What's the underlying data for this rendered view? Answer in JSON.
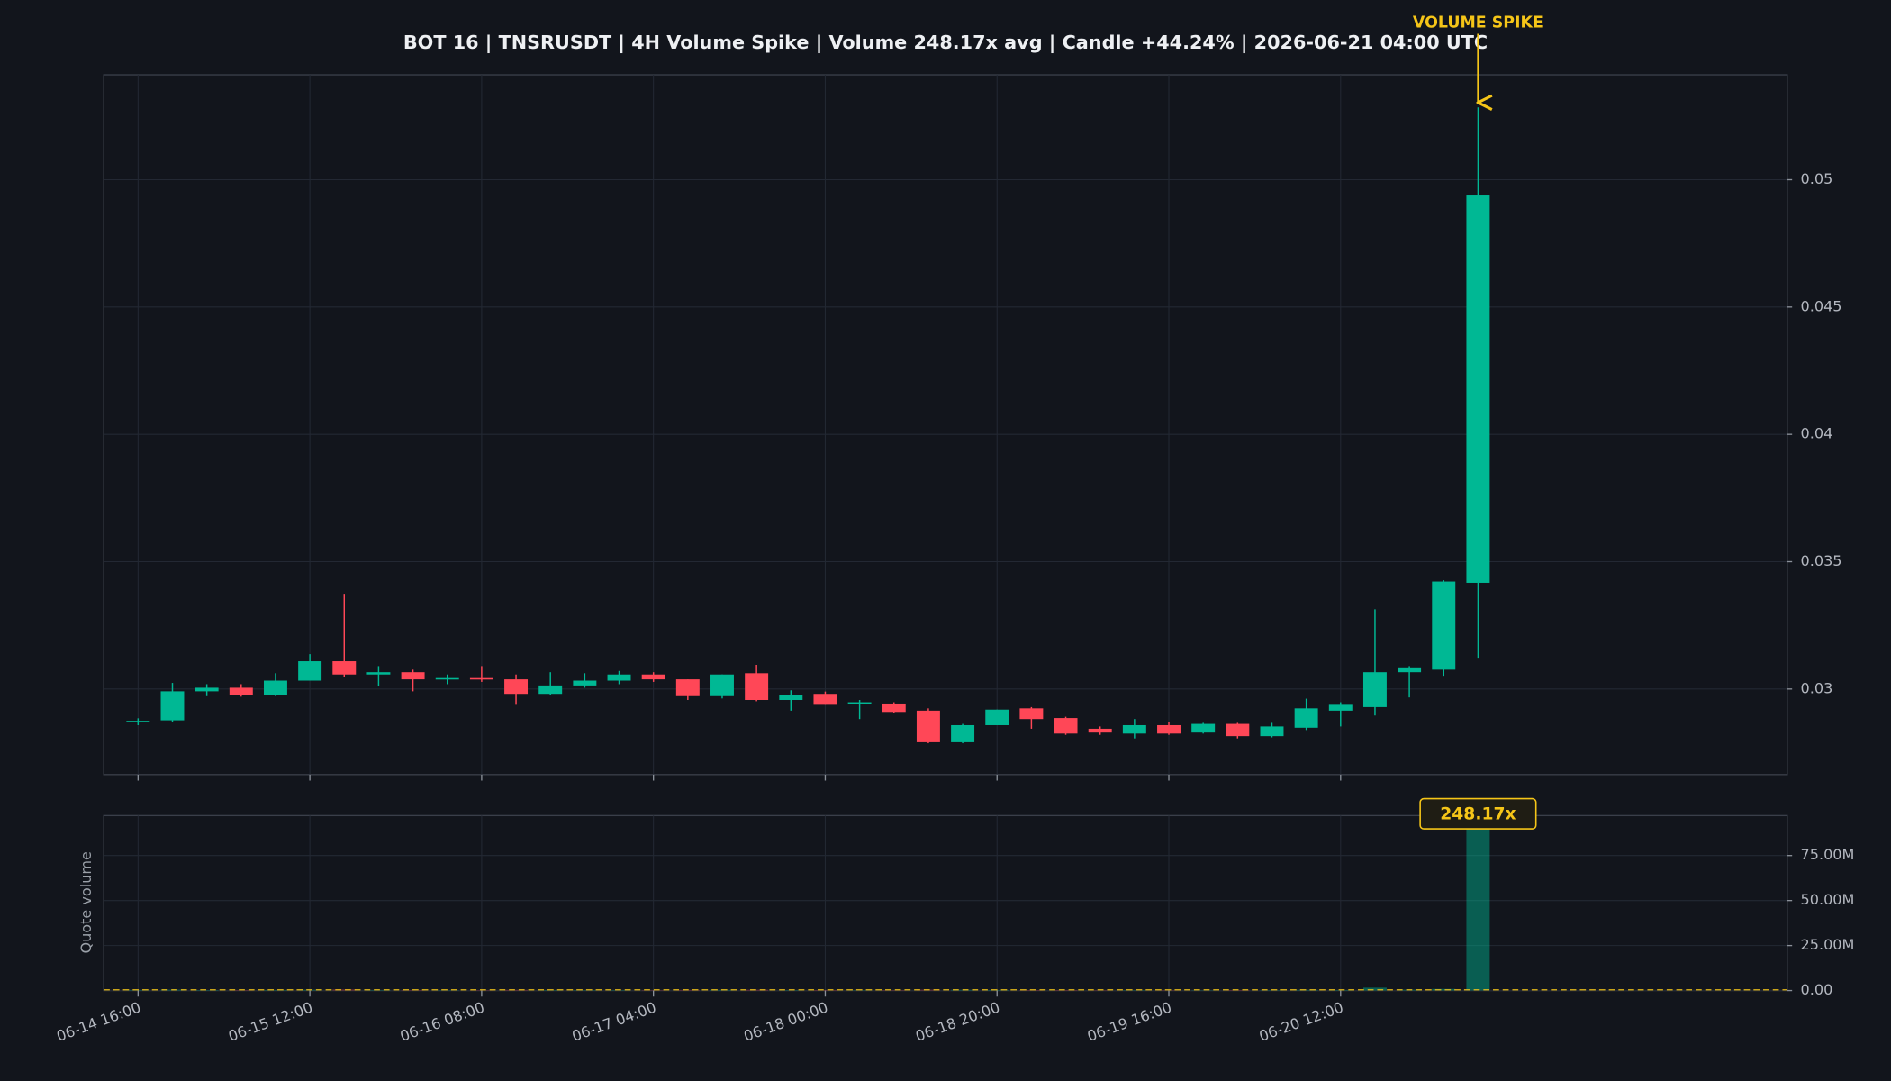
{
  "chart_data": [
    {
      "type": "candlestick",
      "title": "BOT 16 | TNSRUSDT | 4H Volume Spike | Volume 248.17x avg | Candle +44.24% | 2026-06-21 04:00 UTC",
      "open": [
        0.0287,
        0.02877,
        0.02991,
        0.03005,
        0.02977,
        0.03033,
        0.03109,
        0.03057,
        0.03066,
        0.03038,
        0.03043,
        0.03038,
        0.02981,
        0.03014,
        0.03033,
        0.03057,
        0.03038,
        0.02972,
        0.03062,
        0.02957,
        0.02981,
        0.02943,
        0.02943,
        0.02915,
        0.02791,
        0.02858,
        0.02924,
        0.02886,
        0.02844,
        0.02825,
        0.02858,
        0.02829,
        0.02863,
        0.02815,
        0.02848,
        0.02915,
        0.02929,
        0.03066,
        0.03076,
        0.03417
      ],
      "high": [
        0.02885,
        0.03024,
        0.03019,
        0.03019,
        0.03062,
        0.03137,
        0.03374,
        0.0309,
        0.03076,
        0.03057,
        0.0309,
        0.03057,
        0.03066,
        0.03062,
        0.03071,
        0.03066,
        0.03038,
        0.03057,
        0.03095,
        0.02995,
        0.0299,
        0.02957,
        0.02948,
        0.02924,
        0.02863,
        0.02919,
        0.02929,
        0.02891,
        0.02853,
        0.02882,
        0.02872,
        0.02867,
        0.02867,
        0.02867,
        0.02962,
        0.02948,
        0.03313,
        0.0309,
        0.03427,
        0.05284
      ],
      "low": [
        0.02858,
        0.02872,
        0.02972,
        0.0297,
        0.02972,
        0.03033,
        0.03047,
        0.0301,
        0.02991,
        0.03019,
        0.03028,
        0.02938,
        0.02977,
        0.03005,
        0.03019,
        0.03028,
        0.02957,
        0.02963,
        0.02952,
        0.02915,
        0.02938,
        0.02882,
        0.02905,
        0.02787,
        0.02787,
        0.02858,
        0.02844,
        0.0282,
        0.0282,
        0.02806,
        0.0282,
        0.02825,
        0.02806,
        0.0281,
        0.02839,
        0.02853,
        0.02896,
        0.02967,
        0.03052,
        0.03123
      ],
      "close": [
        0.02875,
        0.02991,
        0.03005,
        0.02977,
        0.03033,
        0.03109,
        0.03057,
        0.03066,
        0.03038,
        0.03043,
        0.03038,
        0.02981,
        0.03014,
        0.03033,
        0.03057,
        0.03038,
        0.02972,
        0.03057,
        0.02957,
        0.02976,
        0.02938,
        0.02948,
        0.0291,
        0.02791,
        0.02858,
        0.02919,
        0.02882,
        0.02825,
        0.02829,
        0.02858,
        0.02825,
        0.02863,
        0.02815,
        0.02853,
        0.02924,
        0.02938,
        0.03066,
        0.03085,
        0.03422,
        0.04938
      ],
      "up_color": "#00b894",
      "down_color": "#ff4757",
      "xlim": [
        -1,
        48
      ],
      "ylim": [
        0.02664,
        0.05412
      ],
      "yticks": [
        0.03,
        0.035,
        0.04,
        0.045,
        0.05
      ],
      "grid": true,
      "annotation": {
        "text": "VOLUME SPIKE",
        "index": 39,
        "color": "#f5c518"
      }
    },
    {
      "type": "bar",
      "ylabel": "Quote volume",
      "categories": [
        "06-14 16:00",
        null,
        null,
        null,
        null,
        "06-15 12:00",
        null,
        null,
        null,
        null,
        "06-16 08:00",
        null,
        null,
        null,
        null,
        "06-17 04:00",
        null,
        null,
        null,
        null,
        "06-18 00:00",
        null,
        null,
        null,
        null,
        "06-18 20:00",
        null,
        null,
        null,
        null,
        "06-19 16:00",
        null,
        null,
        null,
        null,
        "06-20 12:00",
        null,
        null,
        null,
        null
      ],
      "values": [
        320000,
        450000,
        280000,
        250000,
        300000,
        420000,
        550000,
        300000,
        260000,
        200000,
        220000,
        350000,
        280000,
        240000,
        260000,
        220000,
        330000,
        360000,
        400000,
        250000,
        270000,
        200000,
        240000,
        450000,
        380000,
        300000,
        280000,
        290000,
        200000,
        220000,
        210000,
        190000,
        260000,
        230000,
        380000,
        300000,
        1600000,
        450000,
        900000,
        99300000
      ],
      "xlim": [
        -1,
        48
      ],
      "ylim": [
        0,
        97200000
      ],
      "yticks": [
        {
          "value": 0,
          "label": "0.00"
        },
        {
          "value": 25000000,
          "label": "25.00M"
        },
        {
          "value": 50000000,
          "label": "50.00M"
        },
        {
          "value": 75000000,
          "label": "75.00M"
        }
      ],
      "grid": true,
      "avg": 400000,
      "avg_color": "#f5c518",
      "spike_label": "248.17x",
      "spike_index": 39
    }
  ]
}
